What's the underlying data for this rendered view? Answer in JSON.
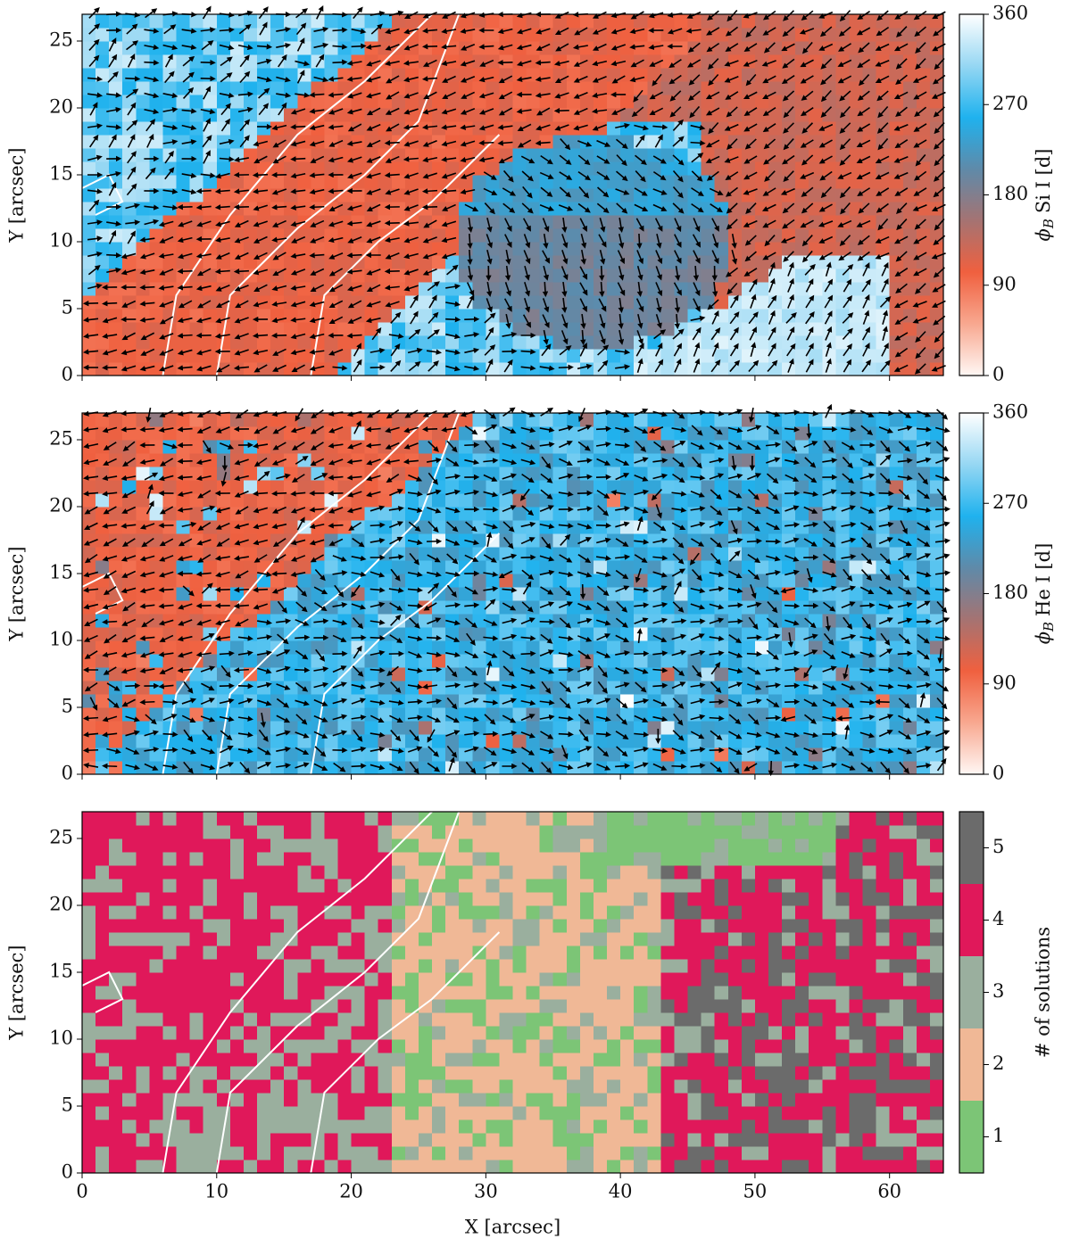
{
  "chart_data": [
    {
      "type": "heatmap",
      "ylabel": "Y [arcsec]",
      "xlim": [
        0,
        64
      ],
      "ylim": [
        0,
        27
      ],
      "xticks": [
        0,
        10,
        20,
        30,
        40,
        50,
        60
      ],
      "yticks": [
        0,
        5,
        10,
        15,
        20,
        25
      ],
      "arrows": true,
      "colorbar": {
        "label": {
          "symbol": "ϕ",
          "subscript": "B",
          "text": "Si I [d]"
        },
        "lim": [
          0,
          360
        ],
        "ticks": [
          0,
          90,
          180,
          270,
          360
        ],
        "colors": [
          "#fff7f4",
          "#f8a890",
          "#f0603f",
          "#a57372",
          "#5f8aa9",
          "#1fb2ee",
          "#96d7f3",
          "#ffffff"
        ]
      }
    },
    {
      "type": "heatmap",
      "ylabel": "Y [arcsec]",
      "xlim": [
        0,
        64
      ],
      "ylim": [
        0,
        27
      ],
      "xticks": [
        0,
        10,
        20,
        30,
        40,
        50,
        60
      ],
      "yticks": [
        0,
        5,
        10,
        15,
        20,
        25
      ],
      "arrows": true,
      "colorbar": {
        "label": {
          "symbol": "ϕ",
          "subscript": "B",
          "text": "He I [d]"
        },
        "lim": [
          0,
          360
        ],
        "ticks": [
          0,
          90,
          180,
          270,
          360
        ],
        "colors": [
          "#fff7f4",
          "#f8a890",
          "#f0603f",
          "#a57372",
          "#5f8aa9",
          "#1fb2ee",
          "#96d7f3",
          "#ffffff"
        ]
      }
    },
    {
      "type": "heatmap",
      "ylabel": "Y [arcsec]",
      "xlabel": "X [arcsec]",
      "xlim": [
        0,
        64
      ],
      "ylim": [
        0,
        27
      ],
      "xticks": [
        0,
        10,
        20,
        30,
        40,
        50,
        60
      ],
      "yticks": [
        0,
        5,
        10,
        15,
        20,
        25
      ],
      "arrows": false,
      "colorbar": {
        "label": "# of solutions",
        "lim": [
          0.5,
          5.5
        ],
        "ticks": [
          1,
          2,
          3,
          4,
          5
        ],
        "colors": [
          "#7cc576",
          "#f0b896",
          "#9aaf9e",
          "#e0185a",
          "#6b6b6b"
        ]
      }
    }
  ]
}
